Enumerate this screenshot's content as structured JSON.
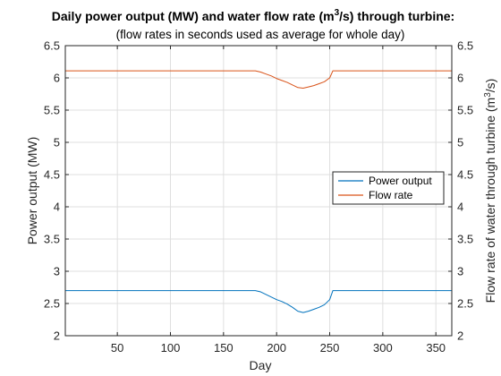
{
  "chart_data": {
    "type": "line",
    "title_main": "Daily power output (MW) and water flow rate (m",
    "title_sup": "3",
    "title_end": "/s) through turbine:",
    "subtitle": "(flow rates in seconds used as average for whole day)",
    "xlabel": "Day",
    "ylabel_left": "Power output (MW)",
    "ylabel_right_main": "Flow rate of water through turbine (m",
    "ylabel_right_sup": "3",
    "ylabel_right_end": "/s)",
    "xlim": [
      1,
      365
    ],
    "ylim": [
      2,
      6.5
    ],
    "xticks": [
      50,
      100,
      150,
      200,
      250,
      300,
      350
    ],
    "yticks": [
      2,
      2.5,
      3,
      3.5,
      4,
      4.5,
      5,
      5.5,
      6,
      6.5
    ],
    "grid": true,
    "legend_position": "right",
    "series": [
      {
        "name": "Power output",
        "color": "#0072bd",
        "axis": "left",
        "x": [
          1,
          180,
          185,
          190,
          195,
          200,
          205,
          210,
          215,
          220,
          225,
          230,
          235,
          240,
          245,
          250,
          253,
          365
        ],
        "y": [
          2.7,
          2.7,
          2.68,
          2.64,
          2.6,
          2.56,
          2.53,
          2.49,
          2.44,
          2.38,
          2.36,
          2.38,
          2.41,
          2.44,
          2.48,
          2.56,
          2.7,
          2.7
        ]
      },
      {
        "name": "Flow rate",
        "color": "#d95319",
        "axis": "right",
        "x": [
          1,
          180,
          185,
          190,
          195,
          200,
          205,
          210,
          215,
          220,
          225,
          230,
          235,
          240,
          245,
          250,
          253,
          365
        ],
        "y": [
          6.11,
          6.11,
          6.09,
          6.06,
          6.03,
          5.99,
          5.96,
          5.93,
          5.89,
          5.85,
          5.84,
          5.86,
          5.88,
          5.91,
          5.94,
          6.0,
          6.11,
          6.11
        ]
      }
    ]
  }
}
